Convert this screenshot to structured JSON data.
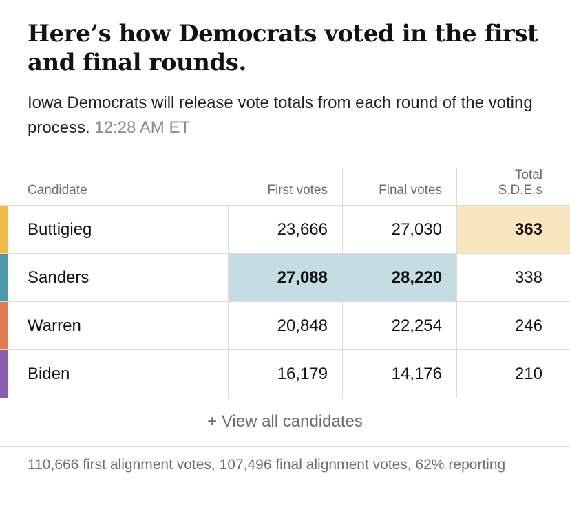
{
  "headline": "Here’s how Democrats voted in the first and final rounds.",
  "dek": {
    "text": "Iowa Democrats will release vote totals from each round of the voting process.",
    "timestamp": "12:28 AM ET"
  },
  "table": {
    "headers": {
      "candidate": "Candidate",
      "first_votes": "First votes",
      "final_votes": "Final votes",
      "sde_line1": "Total",
      "sde_line2": "S.D.E.s"
    },
    "rows": [
      {
        "name": "Buttigieg",
        "first": "23,666",
        "final": "27,030",
        "sde": "363",
        "color": "#f2bb49"
      },
      {
        "name": "Sanders",
        "first": "27,088",
        "final": "28,220",
        "sde": "338",
        "color": "#4c99ab"
      },
      {
        "name": "Warren",
        "first": "20,848",
        "final": "22,254",
        "sde": "246",
        "color": "#e07b52"
      },
      {
        "name": "Biden",
        "first": "16,179",
        "final": "14,176",
        "sde": "210",
        "color": "#8a5fb2"
      }
    ],
    "highlight_colors": {
      "sde_leader": "#f8e6bf",
      "votes_leader": "#c5dde2"
    }
  },
  "view_all_label": "+ View all candidates",
  "footer": "110,666 first alignment votes, 107,496 final alignment votes, 62% reporting"
}
